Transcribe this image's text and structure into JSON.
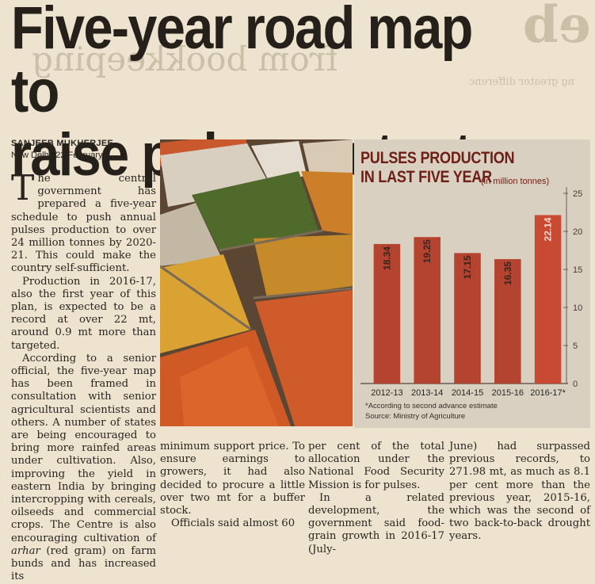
{
  "article": {
    "headline_line1": "Five-year road map to",
    "headline_line2": "raise pulses output",
    "byline": "SANJEEB MUKHERJEE",
    "dateline": "New Delhi, 22 February",
    "para1_dropcap": "T",
    "para1_rest": "he central government has prepared a five-year schedule to push annual pulses production to over 24 million tonnes by 2020-21. This could make the country self-sufficient.",
    "para2": "Production in 2016-17, also the first year of this plan, is expected to be a record at over 22 mt, around 0.9 mt more than targeted.",
    "para3": "According to a senior official, the five-year map has been framed in consultation with senior agricultural scientists and others. A number of states are being encouraged to bring more rainfed areas under cultivation. Also, improving the yield in eastern India by bringing intercropping with cereals, oilseeds and commercial crops. The Centre is also encouraging cultivation of",
    "para3_italic": "arhar",
    "para3_tail": " (red gram) on farm bunds and has increased its",
    "col2_text": "minimum support price. To ensure earnings to growers, it had also decided to procure a little over two mt for a buffer stock.",
    "col2_para2": "Officials said almost 60",
    "col3_text": "per cent of the total allocation under the National Food Security Mission is for pulses.",
    "col3_para2": "In a related development, the government said food-grain growth in 2016-17 (July-",
    "col4_text": "June) had surpassed previous records, to 271.98 mt, as much as 8.1 per cent more than the previous year, 2015-16, which was the second of two back-to-back drought years."
  },
  "bleed": {
    "line1": "from bookkeeping",
    "line2": "ng greater differenc",
    "line3": "eb"
  },
  "chart_data": {
    "type": "bar",
    "title": "PULSES PRODUCTION IN LAST FIVE YEAR",
    "unit": "(in million tonnes)",
    "categories": [
      "2012-13",
      "2013-14",
      "2014-15",
      "2015-16",
      "2016-17*"
    ],
    "values": [
      18.34,
      19.25,
      17.15,
      16.35,
      22.14
    ],
    "value_labels": [
      "18.34",
      "19.25",
      "17.15",
      "16.35",
      "22.14"
    ],
    "ylim": [
      0,
      25
    ],
    "yticks": [
      0,
      5,
      10,
      15,
      20,
      25
    ],
    "footnote": "*According to second advance estimate",
    "source": "Source: Ministry of Agriculture",
    "bar_color": "#b4432f",
    "last_bar_color": "#c84a33"
  }
}
